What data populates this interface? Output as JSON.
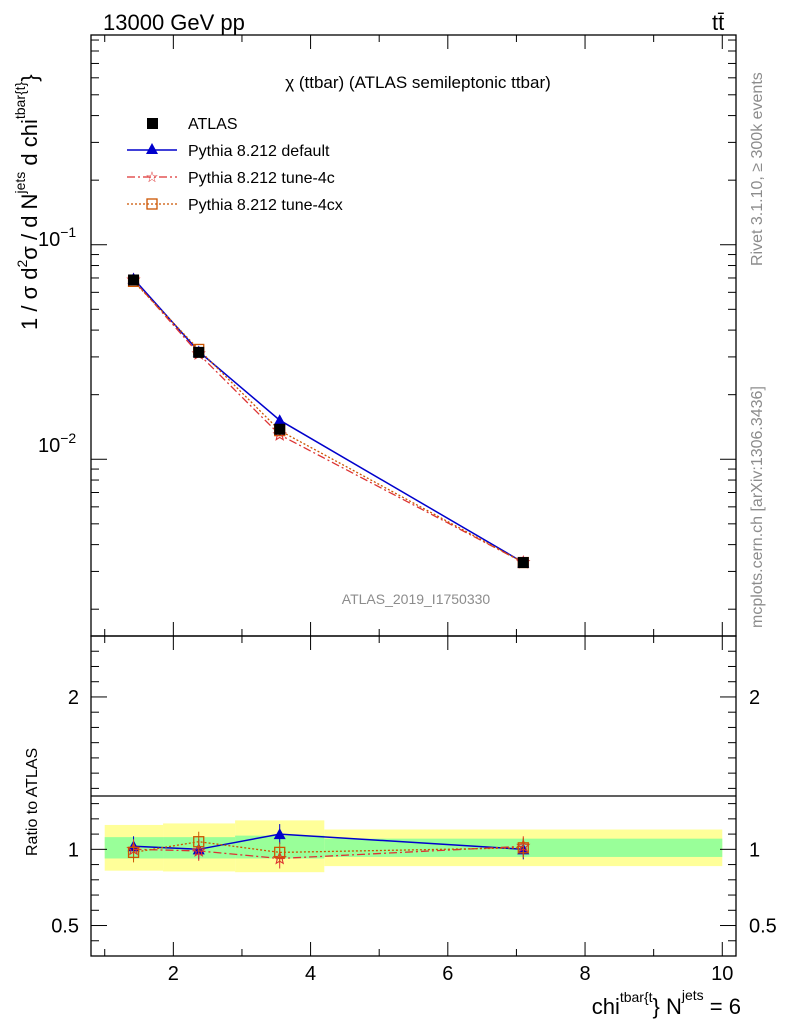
{
  "header": {
    "energy_label": "13000 GeV pp",
    "process_label": "tt̄"
  },
  "side_labels": {
    "rivet": "Rivet 3.1.10, ≥ 300k events",
    "mcplots": "mcplots.cern.ch [arXiv:1306.3436]"
  },
  "chart_data": [
    {
      "type": "line",
      "title": "χ (ttbar) (ATLAS semileptonic ttbar)",
      "watermark": "ATLAS_2019_I1750330",
      "ylabel": "1 / σ d²σ / d N^jets d chi^tbar{t}",
      "ylabel_parts": {
        "main": "1 / σ d",
        "sup2": "2",
        "mid": "σ / d N",
        "sup_jets": "jets",
        "end": "d chi",
        "sup_tbar": "tbar{t}",
        "close": "}"
      },
      "yscale": "log",
      "ylim": [
        0.0015,
        0.95
      ],
      "xlim": [
        0.8,
        10.2
      ],
      "y_tick_labels": [
        "10⁻¹",
        "10⁻²"
      ],
      "y_tick_parts": [
        {
          "base": "10",
          "exp": "−1",
          "value": 0.1
        },
        {
          "base": "10",
          "exp": "−2",
          "value": 0.01
        }
      ],
      "legend_position": "top-left",
      "series": [
        {
          "name": "ATLAS",
          "color": "#000000",
          "marker": "square-filled",
          "x": [
            1.42,
            2.37,
            3.55,
            7.1
          ],
          "values": [
            0.0685,
            0.0315,
            0.0138,
            0.0033
          ]
        },
        {
          "name": "Pythia 8.212 default",
          "color": "#0000cc",
          "marker": "triangle",
          "line": "solid",
          "x": [
            1.42,
            2.37,
            3.55,
            7.1
          ],
          "values": [
            0.0695,
            0.0318,
            0.0152,
            0.0033
          ]
        },
        {
          "name": "Pythia 8.212 tune-4c",
          "color": "#dd3333",
          "marker": "star",
          "line": "dashdot",
          "x": [
            1.42,
            2.37,
            3.55,
            7.1
          ],
          "values": [
            0.0685,
            0.031,
            0.013,
            0.0033
          ]
        },
        {
          "name": "Pythia 8.212 tune-4cx",
          "color": "#cc5500",
          "marker": "square-open",
          "line": "dotted",
          "x": [
            1.42,
            2.37,
            3.55,
            7.1
          ],
          "values": [
            0.0675,
            0.0325,
            0.0136,
            0.0033
          ]
        }
      ]
    },
    {
      "type": "line",
      "ylabel": "Ratio to ATLAS",
      "xlabel_parts": {
        "main": "chi",
        "sup_tbar": "tbar{t",
        "mid": "} N",
        "sup_jets": "jets",
        "end": " = 6"
      },
      "xlim": [
        0.8,
        10.2
      ],
      "ylim": [
        0.3,
        2.4
      ],
      "x_tick_labels": [
        "2",
        "4",
        "6",
        "8",
        "10"
      ],
      "y_tick_labels": [
        "0.5",
        "1",
        "2"
      ],
      "bands": [
        {
          "x_from": 1.0,
          "x_to": 1.85,
          "inner": [
            0.94,
            1.08
          ],
          "outer": [
            0.86,
            1.16
          ]
        },
        {
          "x_from": 1.85,
          "x_to": 2.9,
          "inner": [
            0.94,
            1.08
          ],
          "outer": [
            0.855,
            1.17
          ]
        },
        {
          "x_from": 2.9,
          "x_to": 4.2,
          "inner": [
            0.94,
            1.09
          ],
          "outer": [
            0.85,
            1.19
          ]
        },
        {
          "x_from": 4.2,
          "x_to": 10.0,
          "inner": [
            0.95,
            1.07
          ],
          "outer": [
            0.89,
            1.13
          ]
        }
      ],
      "series": [
        {
          "name": "Pythia 8.212 default",
          "color": "#0000cc",
          "marker": "triangle",
          "line": "solid",
          "x": [
            1.42,
            2.37,
            3.55,
            7.1
          ],
          "values": [
            1.02,
            1.0,
            1.1,
            1.0
          ]
        },
        {
          "name": "Pythia 8.212 tune-4c",
          "color": "#dd3333",
          "marker": "star",
          "line": "dashdot",
          "x": [
            1.42,
            2.37,
            3.55,
            7.1
          ],
          "values": [
            1.0,
            0.99,
            0.94,
            1.02
          ]
        },
        {
          "name": "Pythia 8.212 tune-4cx",
          "color": "#cc5500",
          "marker": "square-open",
          "line": "dotted",
          "x": [
            1.42,
            2.37,
            3.55,
            7.1
          ],
          "values": [
            0.98,
            1.05,
            0.98,
            1.01
          ]
        }
      ]
    }
  ]
}
